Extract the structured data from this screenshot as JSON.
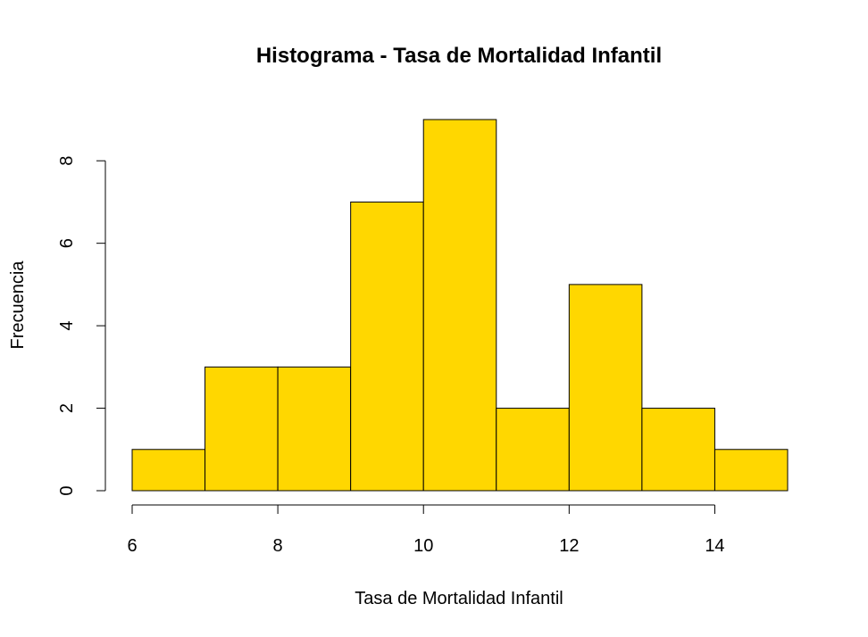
{
  "chart_data": {
    "type": "bar",
    "title": "Histograma - Tasa de Mortalidad Infantil",
    "xlabel": "Tasa de Mortalidad Infantil",
    "ylabel": "Frecuencia",
    "bins": [
      {
        "x0": 6,
        "x1": 7,
        "count": 1
      },
      {
        "x0": 7,
        "x1": 8,
        "count": 3
      },
      {
        "x0": 8,
        "x1": 9,
        "count": 3
      },
      {
        "x0": 9,
        "x1": 10,
        "count": 7
      },
      {
        "x0": 10,
        "x1": 11,
        "count": 9
      },
      {
        "x0": 11,
        "x1": 12,
        "count": 2
      },
      {
        "x0": 12,
        "x1": 13,
        "count": 5
      },
      {
        "x0": 13,
        "x1": 14,
        "count": 2
      },
      {
        "x0": 14,
        "x1": 15,
        "count": 1
      }
    ],
    "x_ticks": [
      6,
      8,
      10,
      12,
      14
    ],
    "y_ticks": [
      0,
      2,
      4,
      6,
      8
    ],
    "xlim": [
      6,
      15
    ],
    "ylim": [
      0,
      9
    ],
    "bar_color": "#FFD700",
    "grid": false,
    "legend": "none"
  }
}
